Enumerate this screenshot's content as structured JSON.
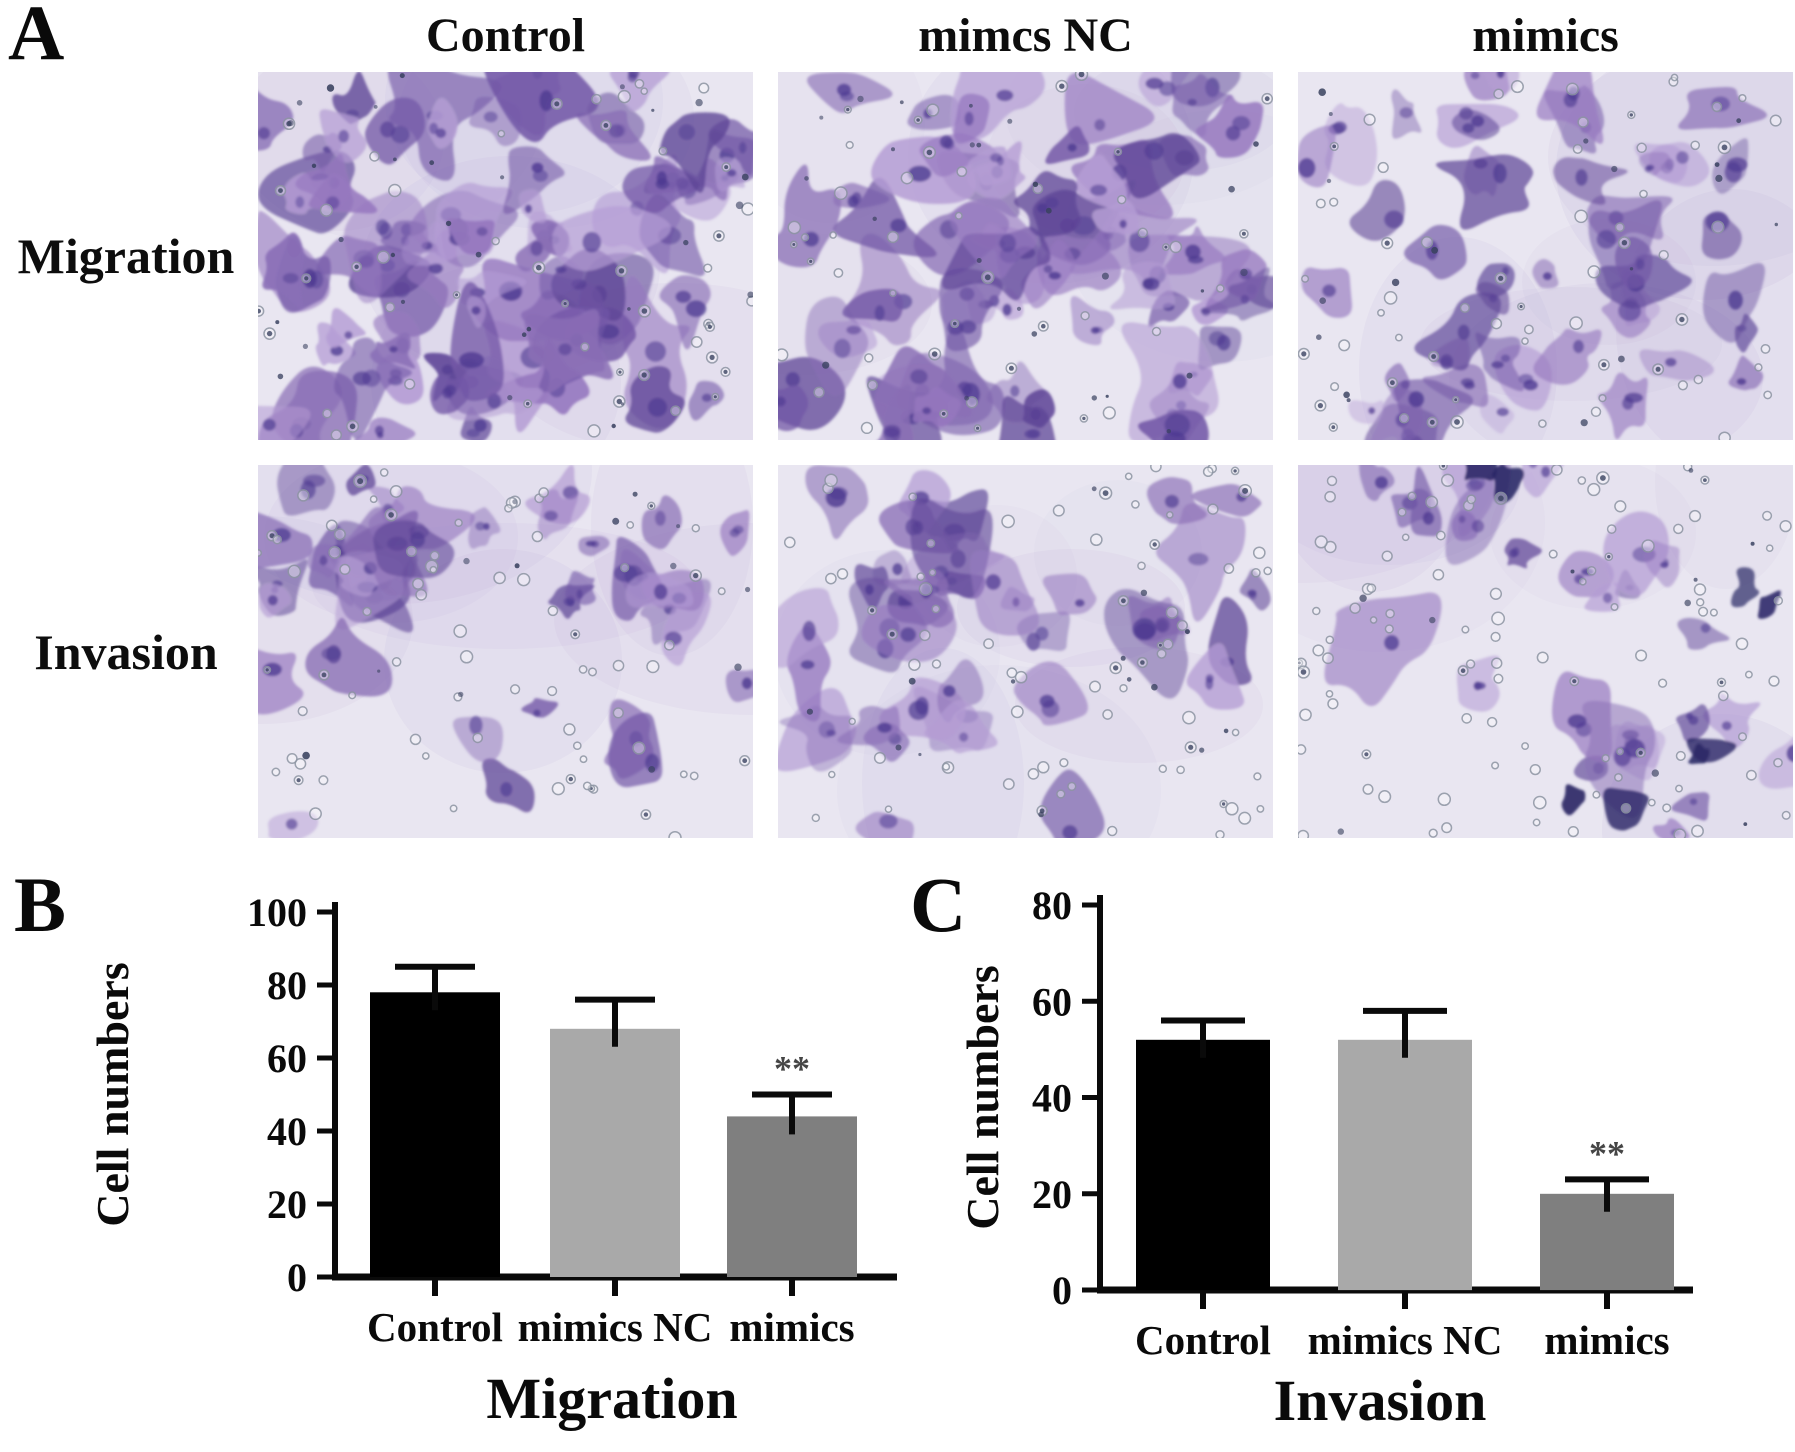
{
  "panels": {
    "a": {
      "label": "A",
      "column_headers": [
        "Control",
        "mimcs NC",
        "mimics"
      ],
      "row_labels": [
        "Migration",
        "Invasion"
      ]
    },
    "b": {
      "label": "B"
    },
    "c": {
      "label": "C"
    }
  },
  "chart_data": [
    {
      "panel": "B",
      "type": "bar",
      "title": "Migration",
      "categories": [
        "Control",
        "mimics NC",
        "mimics"
      ],
      "values": [
        78,
        68,
        44
      ],
      "errors": [
        7,
        8,
        6
      ],
      "significance": [
        "",
        "",
        "**"
      ],
      "xlabel": "",
      "ylabel": "Cell numbers",
      "ylim": [
        0,
        100
      ],
      "yticks": [
        0,
        20,
        40,
        60,
        80,
        100
      ],
      "bar_colors": [
        "#000000",
        "#a9a9a9",
        "#7f7f7f"
      ],
      "axis_color": "#0a0a0a",
      "grid": false,
      "legend": "none"
    },
    {
      "panel": "C",
      "type": "bar",
      "title": "Invasion",
      "categories": [
        "Control",
        "mimics NC",
        "mimics"
      ],
      "values": [
        52,
        52,
        20
      ],
      "errors": [
        4,
        6,
        3
      ],
      "significance": [
        "",
        "",
        "**"
      ],
      "xlabel": "",
      "ylabel": "Cell numbers",
      "ylim": [
        0,
        80
      ],
      "yticks": [
        0,
        20,
        40,
        60,
        80
      ],
      "bar_colors": [
        "#000000",
        "#a9a9a9",
        "#7f7f7f"
      ],
      "axis_color": "#0a0a0a",
      "grid": false,
      "legend": "none"
    }
  ],
  "micrographs": {
    "description": "Transwell assay photomicrographs, crystal-violet stained cells over membrane pores",
    "background": "#e9e6f1",
    "pore_ring_color": "#8d95a3",
    "speck_color": "#3a4260",
    "stain_palette": [
      "#a58dca",
      "#8a6fb6",
      "#7257a6",
      "#b49cd4",
      "#5d4496",
      "#9678bf"
    ],
    "nucleus_color": "#4c3890",
    "debris_color": "#2b2766",
    "panels": [
      {
        "name": "migration-control",
        "row": "Migration",
        "column": "Control",
        "seed": 11,
        "cells": 78,
        "pores": 48,
        "specks": 30,
        "dark_dots": 0.5,
        "spiky": 0.28,
        "tone": 1.18,
        "scatter": 1.0,
        "clusters": []
      },
      {
        "name": "migration-mimcs-nc",
        "row": "Migration",
        "column": "mimcs NC",
        "seed": 22,
        "cells": 68,
        "pores": 45,
        "specks": 26,
        "dark_dots": 0.45,
        "spiky": 0.26,
        "tone": 1.12,
        "scatter": 1.0,
        "clusters": []
      },
      {
        "name": "migration-mimics",
        "row": "Migration",
        "column": "mimics",
        "seed": 33,
        "cells": 47,
        "pores": 62,
        "specks": 18,
        "dark_dots": 0.35,
        "spiky": 0.16,
        "tone": 0.88,
        "scatter": 0.55,
        "clusters": [
          [
            0.22,
            0.35,
            0.3,
            2.0
          ],
          [
            0.72,
            0.3,
            0.33,
            2.0
          ],
          [
            0.6,
            0.72,
            0.3,
            1.2
          ]
        ]
      },
      {
        "name": "invasion-control",
        "row": "Invasion",
        "column": "Control",
        "seed": 44,
        "cells": 41,
        "pores": 78,
        "specks": 12,
        "dark_dots": 0.2,
        "spiky": 0.16,
        "tone": 1.0,
        "scatter": 0.3,
        "clusters": [
          [
            0.2,
            0.2,
            0.26,
            3.0
          ],
          [
            0.75,
            0.28,
            0.3,
            3.0
          ],
          [
            0.62,
            0.74,
            0.3,
            1.5
          ]
        ]
      },
      {
        "name": "invasion-mimcs-nc",
        "row": "Invasion",
        "column": "mimcs NC",
        "seed": 55,
        "cells": 39,
        "pores": 76,
        "specks": 14,
        "dark_dots": 0.2,
        "spiky": 0.2,
        "tone": 1.0,
        "scatter": 0.45,
        "clusters": [
          [
            0.22,
            0.25,
            0.3,
            3.0
          ],
          [
            0.55,
            0.55,
            0.35,
            2.0
          ],
          [
            0.3,
            0.82,
            0.25,
            1.2
          ]
        ]
      },
      {
        "name": "invasion-mimics",
        "row": "Invasion",
        "column": "mimics",
        "seed": 66,
        "cells": 26,
        "pores": 105,
        "specks": 10,
        "dark_dots": 0.15,
        "spiky": 0.14,
        "tone": 0.95,
        "scatter": 0.22,
        "clusters": [
          [
            0.28,
            0.12,
            0.22,
            2.0
          ],
          [
            0.62,
            0.16,
            0.28,
            2.5
          ],
          [
            0.78,
            0.8,
            0.24,
            2.5
          ],
          [
            0.25,
            0.55,
            0.14,
            0.8
          ]
        ],
        "debris": 8,
        "debris_at": [
          [
            0.6,
            0.9
          ],
          [
            0.82,
            0.8
          ],
          [
            0.42,
            0.04
          ],
          [
            0.95,
            0.35
          ]
        ]
      }
    ]
  }
}
